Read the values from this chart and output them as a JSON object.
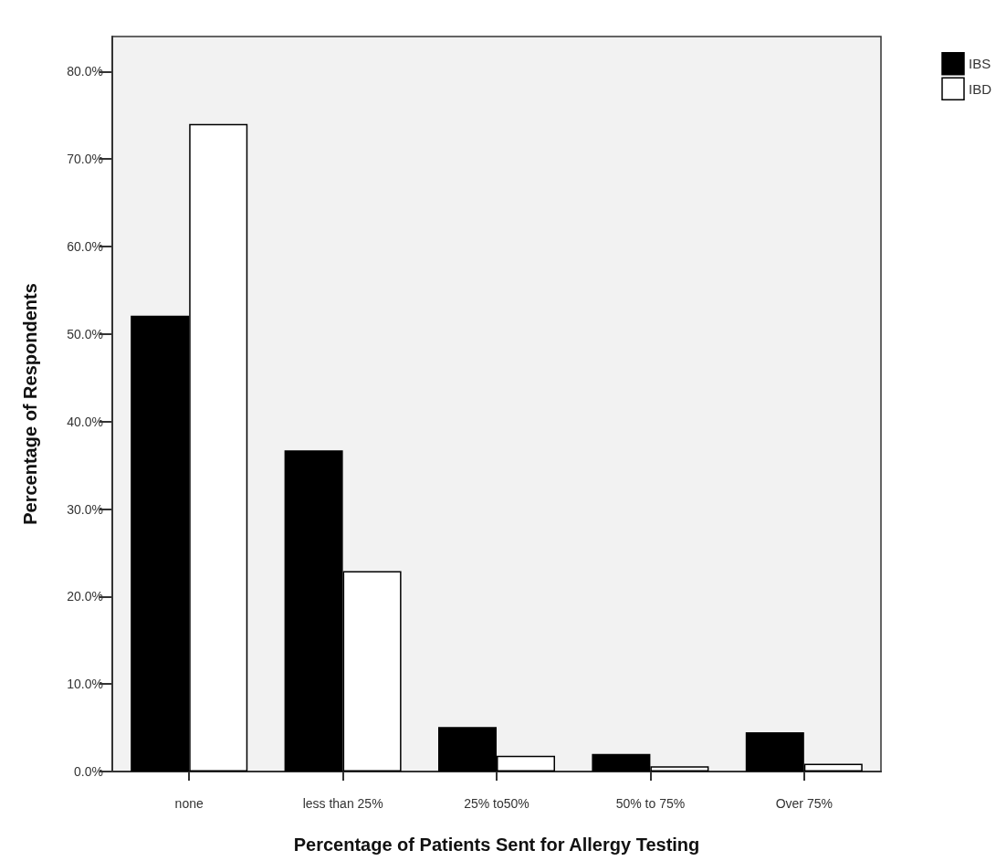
{
  "chart_data": {
    "type": "bar",
    "xlabel": "Percentage of Patients Sent for Allergy Testing",
    "ylabel": "Percentage of Respondents",
    "categories": [
      "none",
      "less than 25%",
      "25% to50%",
      "50% to 75%",
      "Over 75%"
    ],
    "series": [
      {
        "name": "IBS",
        "color": "#000000",
        "values": [
          52.1,
          36.7,
          5.1,
          2.0,
          4.5
        ]
      },
      {
        "name": "IBD",
        "color": "#ffffff",
        "values": [
          74.0,
          22.9,
          1.8,
          0.6,
          0.9
        ]
      }
    ],
    "ylim": [
      0,
      84
    ],
    "yticks": [
      {
        "value": 0,
        "label": "0.0%"
      },
      {
        "value": 10,
        "label": "10.0%"
      },
      {
        "value": 20,
        "label": "20.0%"
      },
      {
        "value": 30,
        "label": "30.0%"
      },
      {
        "value": 40,
        "label": "40.0%"
      },
      {
        "value": 50,
        "label": "50.0%"
      },
      {
        "value": 60,
        "label": "60.0%"
      },
      {
        "value": 70,
        "label": "70.0%"
      },
      {
        "value": 80,
        "label": "80.0%"
      }
    ],
    "grid": false,
    "legend": "top right"
  }
}
